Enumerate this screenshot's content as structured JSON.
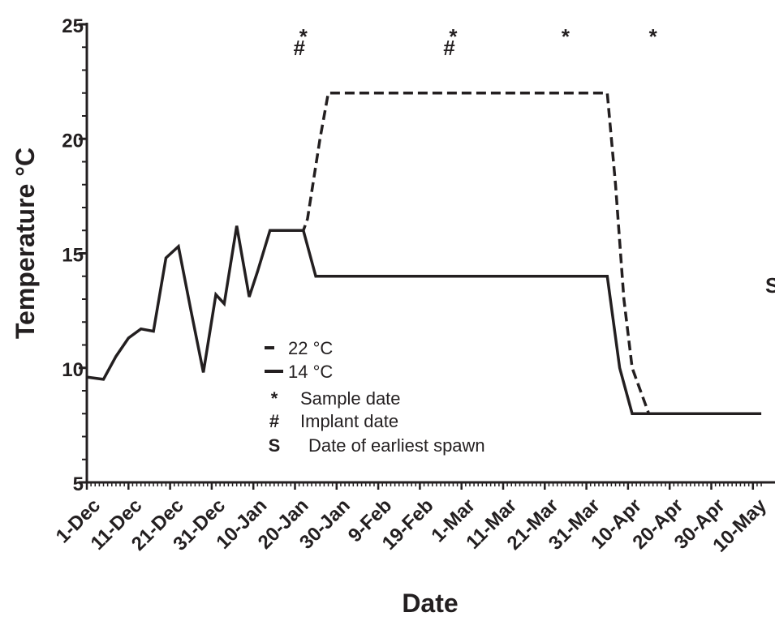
{
  "chart_data": {
    "type": "line",
    "title": "",
    "xlabel": "Date",
    "ylabel": "Temperature °C",
    "ylim": [
      5,
      25
    ],
    "y_ticks": [
      "5",
      "10",
      "15",
      "20",
      "25"
    ],
    "x_tick_labels": [
      "1-Dec",
      "11-Dec",
      "21-Dec",
      "31-Dec",
      "10-Jan",
      "20-Jan",
      "30-Jan",
      "9-Feb",
      "19-Feb",
      "1-Mar",
      "11-Mar",
      "21-Mar",
      "31-Mar",
      "10-Apr",
      "20-Apr",
      "30-Apr",
      "10-May"
    ],
    "x_unit": "days since 1-Dec",
    "xlim": [
      0,
      162
    ],
    "legend_placement": "center-left",
    "grid": false,
    "series": [
      {
        "name": "22 °C",
        "line_style": "dashed",
        "color": "#231f20",
        "x": [
          44,
          52,
          53,
          56,
          58,
          61,
          63,
          125,
          127,
          129,
          131,
          135,
          162
        ],
        "y": [
          16.0,
          16.0,
          16.5,
          20.0,
          22.0,
          22.0,
          22.0,
          22.0,
          18.0,
          13.0,
          10.0,
          8.0,
          8.0
        ]
      },
      {
        "name": "14 °C",
        "line_style": "solid",
        "color": "#231f20",
        "x": [
          0,
          4,
          7,
          10,
          13,
          16,
          19,
          22,
          25,
          28,
          31,
          33,
          36,
          39,
          41,
          44,
          46,
          49,
          52,
          55,
          125,
          128,
          131,
          162
        ],
        "y": [
          9.6,
          9.5,
          10.5,
          11.3,
          11.7,
          11.6,
          14.8,
          15.3,
          12.5,
          9.8,
          13.2,
          12.8,
          16.2,
          13.1,
          14.2,
          16.0,
          16.0,
          16.0,
          16.0,
          14.0,
          14.0,
          10.0,
          8.0,
          8.0
        ]
      }
    ],
    "annotations": {
      "sample_dates": [
        {
          "x": 52
        },
        {
          "x": 88
        },
        {
          "x": 115
        },
        {
          "x": 136
        }
      ],
      "sample_symbol": "*",
      "implant_dates": [
        {
          "x": 52
        },
        {
          "x": 88
        }
      ],
      "implant_symbol": "#",
      "spawn": {
        "symbol": "S",
        "x": 162,
        "y": 13.6
      }
    },
    "legend": [
      {
        "symbol_style": "dashed",
        "label": "22 °C"
      },
      {
        "symbol_style": "solid",
        "label": "14 °C"
      },
      {
        "symbol": "*",
        "label": "Sample date"
      },
      {
        "symbol": "#",
        "label": "Implant date"
      },
      {
        "symbol": "S",
        "label": "Date of earliest spawn"
      }
    ]
  }
}
